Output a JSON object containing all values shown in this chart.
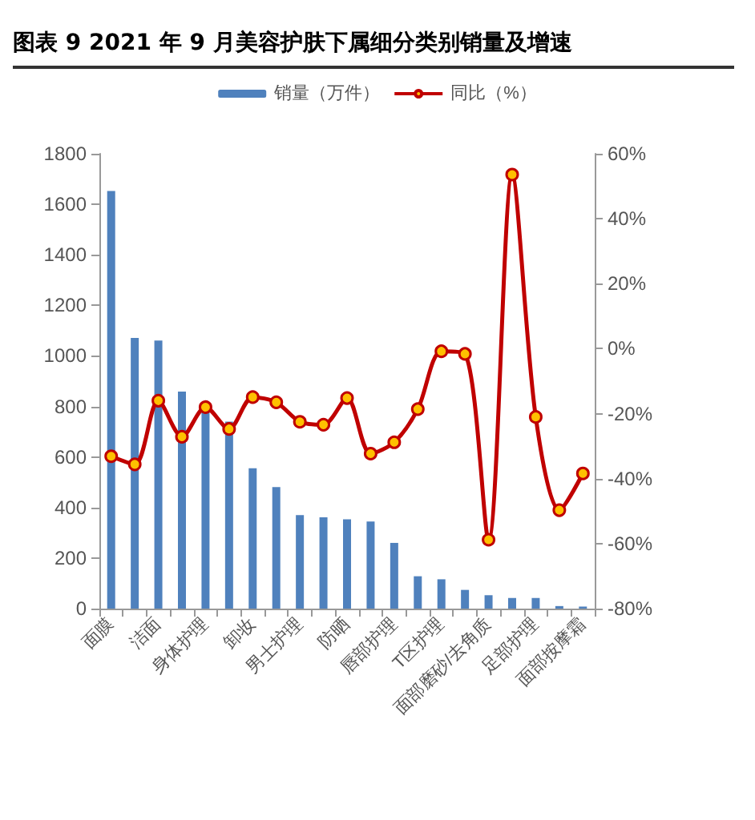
{
  "chart_data": {
    "type": "bar",
    "title": "图表 9 2021 年 9 月美容护肤下属细分类别销量及增速",
    "categories": [
      "面膜",
      null,
      "洁面",
      null,
      "身体护理",
      null,
      "卸妆",
      null,
      "男士护理",
      null,
      "防晒",
      null,
      "唇部护理",
      null,
      "T区护理",
      null,
      "面部磨砂/去角质",
      null,
      "足部护理",
      null,
      "面部按摩霜"
    ],
    "series": [
      {
        "name": "销量（万件）",
        "type": "bar",
        "color": "#4f81bd",
        "values": [
          1653,
          1071,
          1061,
          859,
          790,
          740,
          555,
          481,
          370,
          361,
          353,
          345,
          260,
          128,
          116,
          74,
          53,
          42,
          42,
          10,
          8
        ]
      },
      {
        "name": "同比（%）",
        "type": "line",
        "axis": "y2",
        "color": "#c00000",
        "marker": "circle",
        "values": [
          -33.1,
          -35.6,
          -16,
          -27.1,
          -18,
          -24.7,
          -14.9,
          -16.5,
          -22.5,
          -23.4,
          -15.2,
          -32.3,
          -28.8,
          -18.6,
          -0.8,
          -1.6,
          -58.8,
          53.6,
          -21,
          -49.7,
          -38.4
        ]
      }
    ],
    "ylim": [
      0,
      1800
    ],
    "yticks": [
      0,
      200,
      400,
      600,
      800,
      1000,
      1200,
      1400,
      1600,
      1800
    ],
    "y2lim": [
      -80,
      60
    ],
    "y2ticks": [
      {
        "value": -80,
        "label": "-80%"
      },
      {
        "value": -60,
        "label": "-60%"
      },
      {
        "value": -40,
        "label": "-40%"
      },
      {
        "value": -20,
        "label": "-20%"
      },
      {
        "value": 0,
        "label": "0%"
      },
      {
        "value": 20,
        "label": "20%"
      },
      {
        "value": 40,
        "label": "40%"
      },
      {
        "value": 60,
        "label": "60%"
      }
    ],
    "grid": false,
    "legend": "top"
  }
}
